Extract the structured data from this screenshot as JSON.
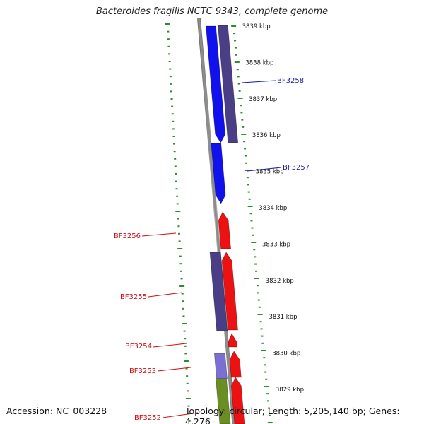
{
  "title": "Bacteroides fragilis NCTC 9343, complete genome",
  "accession_text": "Accession: NC_003228",
  "info_text": "Topology: circular; Length: 5,205,140 bp; Genes: 4,276",
  "colors": {
    "backbone": "#8c8c8c",
    "tick": "#2e8b2e",
    "forward_gene": "#1111ee",
    "reverse_gene": "#ee1111",
    "cds_dark": "#4a3f86",
    "cds_light": "#7b6fd4",
    "rna_green": "#6b8e23",
    "label_blue": "#1a1aa6",
    "label_red": "#cc1111"
  },
  "kbp_labels": [
    {
      "kbp": 3839,
      "text": "3839 kbp"
    },
    {
      "kbp": 3838,
      "text": "3838 kbp"
    },
    {
      "kbp": 3837,
      "text": "3837 kbp"
    },
    {
      "kbp": 3836,
      "text": "3836 kbp"
    },
    {
      "kbp": 3835,
      "text": "3835 kbp"
    },
    {
      "kbp": 3834,
      "text": "3834 kbp"
    },
    {
      "kbp": 3833,
      "text": "3833 kbp"
    },
    {
      "kbp": 3832,
      "text": "3832 kbp"
    },
    {
      "kbp": 3831,
      "text": "3831 kbp"
    },
    {
      "kbp": 3830,
      "text": "3830 kbp"
    },
    {
      "kbp": 3829,
      "text": "3829 kbp"
    }
  ],
  "gene_labels": [
    {
      "name": "BF3258",
      "color": "label_blue"
    },
    {
      "name": "BF3257",
      "color": "label_blue"
    },
    {
      "name": "BF3256",
      "color": "label_red"
    },
    {
      "name": "BF3255",
      "color": "label_red"
    },
    {
      "name": "BF3254",
      "color": "label_red"
    },
    {
      "name": "BF3253",
      "color": "label_red"
    },
    {
      "name": "BF3252",
      "color": "label_red"
    }
  ]
}
